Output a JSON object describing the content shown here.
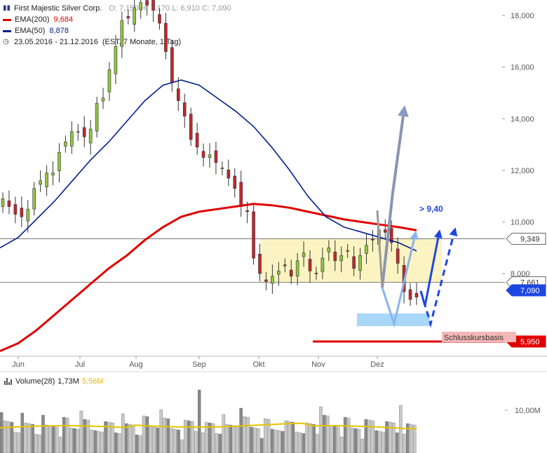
{
  "legend": {
    "title": "First Majestic Silver Corp.",
    "ohlc": "O: 7,150  H: 7,170  L: 6,910  C: 7,090",
    "ema200_label": "EMA(200)",
    "ema200_value": "9,684",
    "ema50_label": "EMA(50)",
    "ema50_value": "8,878",
    "period": "23.05.2016 - 21.12.2016",
    "period_note": "(EST, 7 Monate, 1 Tag)",
    "colors": {
      "ema200": "#e00000",
      "ema50": "#001f8e"
    }
  },
  "volume_legend": {
    "label": "Volume(28)",
    "value": "1,73M",
    "avg": "5,56M"
  },
  "annotations": {
    "target_label": "> 9,40",
    "base_label": "Schlusskursbasis"
  },
  "chart_data": {
    "type": "candlestick",
    "x_ticks": [
      "Jun",
      "Jul",
      "Aug",
      "Sep",
      "Okt",
      "Nov",
      "Dez"
    ],
    "y_ticks": [
      8,
      10,
      12,
      14,
      16,
      18
    ],
    "y_tick_labels": [
      "8,000",
      "10,000",
      "12,000",
      "14,000",
      "16,000",
      "18,000"
    ],
    "ylim": [
      4.8,
      18.6
    ],
    "volume_ticks": [
      "10,00M"
    ],
    "series": [
      {
        "name": "First Majestic Silver Corp.",
        "close": [
          10.9,
          10.6,
          10.3,
          10.2,
          10.5,
          11.3,
          11.6,
          11.9,
          11.9,
          12.7,
          13.1,
          13.5,
          13.5,
          13.3,
          13.6,
          14.6,
          14.8,
          15.9,
          16.8,
          17.8,
          17.9,
          18.3,
          18.5,
          18.4,
          18.2,
          17.7,
          16.6,
          15.4,
          14.7,
          14.1,
          13.2,
          12.9,
          12.5,
          12.6,
          12.3,
          12.1,
          11.7,
          11.3,
          10.6,
          10.4,
          8.6,
          8.0,
          7.7,
          7.9,
          8.1,
          8.3,
          7.9,
          8.5,
          8.8,
          8.1,
          8.0,
          8.6,
          9.0,
          8.5,
          8.7,
          8.9,
          8.2,
          8.7,
          9.1,
          9.3,
          9.7,
          9.6,
          9.2,
          8.4,
          7.3,
          7.0,
          7.09
        ]
      },
      {
        "name": "EMA(200)",
        "values": [
          5.0,
          5.3,
          5.8,
          6.4,
          7.0,
          7.6,
          8.2,
          8.7,
          9.3,
          9.8,
          10.2,
          10.4,
          10.5,
          10.6,
          10.7,
          10.65,
          10.55,
          10.4,
          10.25,
          10.1,
          10.0,
          9.9,
          9.8,
          9.68
        ]
      },
      {
        "name": "EMA(50)",
        "values": [
          9.0,
          9.4,
          10.1,
          10.8,
          11.6,
          12.4,
          13.1,
          13.9,
          14.7,
          15.3,
          15.5,
          15.3,
          14.8,
          14.3,
          13.7,
          12.9,
          12.0,
          11.0,
          10.2,
          9.8,
          9.6,
          9.4,
          9.2,
          8.878
        ]
      }
    ],
    "horizontal_levels": [
      {
        "value": 9.349,
        "label": "9,349"
      },
      {
        "value": 7.661,
        "label": "7,661"
      },
      {
        "value": 7.09,
        "label": "7,090"
      },
      {
        "value": 5.95,
        "label": "5,950"
      }
    ],
    "zone": {
      "from": 7.661,
      "to": 9.349
    }
  }
}
